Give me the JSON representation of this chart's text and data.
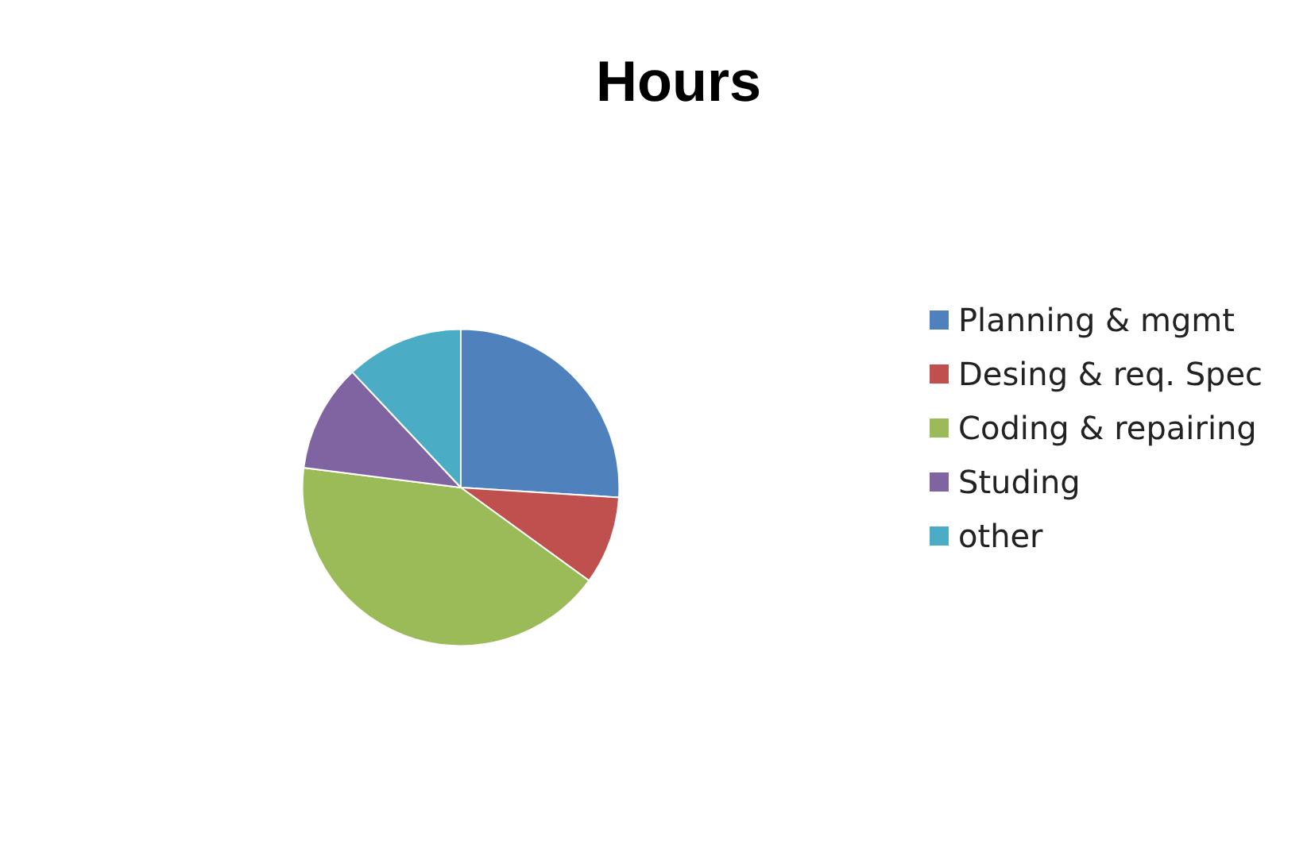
{
  "chart_data": {
    "type": "pie",
    "title": "Hours",
    "categories": [
      "Planning & mgmt",
      "Desing & req. Spec",
      "Coding & repairing",
      "Studing",
      "other"
    ],
    "values": [
      26,
      9,
      42,
      11,
      12
    ],
    "colors": [
      "#4f81bd",
      "#c0504d",
      "#9bbb59",
      "#8064a2",
      "#4bacc6"
    ],
    "legend": "right"
  }
}
